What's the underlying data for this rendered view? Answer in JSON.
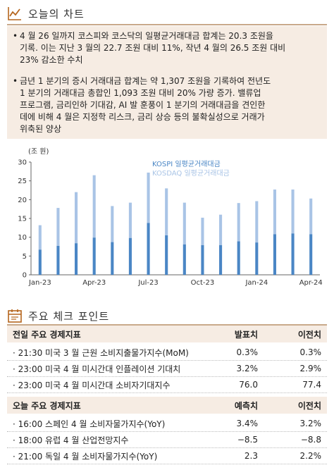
{
  "section1": {
    "title": "오늘의 차트",
    "icon": "line-chart-icon"
  },
  "summary": {
    "bullets": [
      [
        "4 월 26 일까지 코스피와 코스닥의 일평균거래대금 합계는 20.3 조원을",
        "기록. 이는 지난 3 월의 22.7 조원 대비 11%, 작년 4 월의 26.5 조원 대비",
        "23% 감소한 수치"
      ],
      [
        "금년 1 분기의 증시 거래대금 합계는 약 1,307 조원을 기록하여 전년도",
        "1 분기의 거래대금 총합인 1,093 조원 대비 20% 가량 증가. 밸류업",
        "프로그램, 금리인하 기대감, AI 발 훈풍이 1 분기의 거래대금을 견인한",
        "데에 비해 4 월은 지정학 리스크, 금리 상승 등의 불확실성으로 거래가",
        "위축된 양상"
      ]
    ]
  },
  "chart_data": {
    "type": "bar",
    "stacked": true,
    "unit_label": "(조 원)",
    "categories": [
      "Jan-23",
      "Feb-23",
      "Mar-23",
      "Apr-23",
      "May-23",
      "Jun-23",
      "Jul-23",
      "Aug-23",
      "Sep-23",
      "Oct-23",
      "Nov-23",
      "Dec-23",
      "Jan-24",
      "Feb-24",
      "Mar-24",
      "Apr-24"
    ],
    "x_tick_labels": [
      "Jan-23",
      "Apr-23",
      "Jul-23",
      "Oct-23",
      "Jan-24",
      "Apr-24"
    ],
    "series": [
      {
        "name": "KOSPI 일평균거래대금",
        "color": "#4a86c5",
        "values": [
          6.7,
          7.7,
          8.4,
          9.9,
          8.7,
          9.8,
          13.8,
          10.5,
          8.1,
          7.9,
          7.9,
          8.9,
          8.6,
          10.8,
          11.0,
          10.8
        ]
      },
      {
        "name": "KOSDAQ 일평균거래대금",
        "color": "#a9c4e6",
        "values": [
          6.5,
          10.1,
          13.6,
          16.6,
          9.6,
          9.4,
          13.4,
          12.5,
          11.1,
          7.3,
          8.1,
          10.2,
          11.0,
          11.9,
          11.7,
          9.5
        ]
      }
    ],
    "ylim": [
      0,
      30
    ],
    "yticks": [
      0,
      5,
      10,
      15,
      20,
      25,
      30
    ],
    "legend_position": "top-left"
  },
  "section2": {
    "title": "주요 체크 포인트",
    "icon": "calendar-icon"
  },
  "table1": {
    "header": {
      "name": "전일 주요 경제지표",
      "a": "발표치",
      "b": "이전치"
    },
    "rows": [
      {
        "name": "· 21:30 미국 3 월 근원 소비지출물가지수(MoM)",
        "a": "0.3%",
        "b": "0.3%"
      },
      {
        "name": "· 23:00 미국 4 월 미시간대 인플레이션 기대치",
        "a": "3.2%",
        "b": "2.9%"
      },
      {
        "name": "· 23:00 미국 4 월 미시간대 소비자기대지수",
        "a": "76.0",
        "b": "77.4"
      }
    ]
  },
  "table2": {
    "header": {
      "name": "오늘 주요 경제지표",
      "a": "예측치",
      "b": "이전치"
    },
    "rows": [
      {
        "name": "· 16:00 스페인 4 월 소비자물가지수(YoY)",
        "a": "3.4%",
        "b": "3.2%"
      },
      {
        "name": "· 18:00 유럽 4 월 산업전망지수",
        "a": "−8.5",
        "b": "−8.8"
      },
      {
        "name": "· 21:00 독일 4 월 소비자물가지수(YoY)",
        "a": "2.3",
        "b": "2.2%"
      }
    ]
  }
}
